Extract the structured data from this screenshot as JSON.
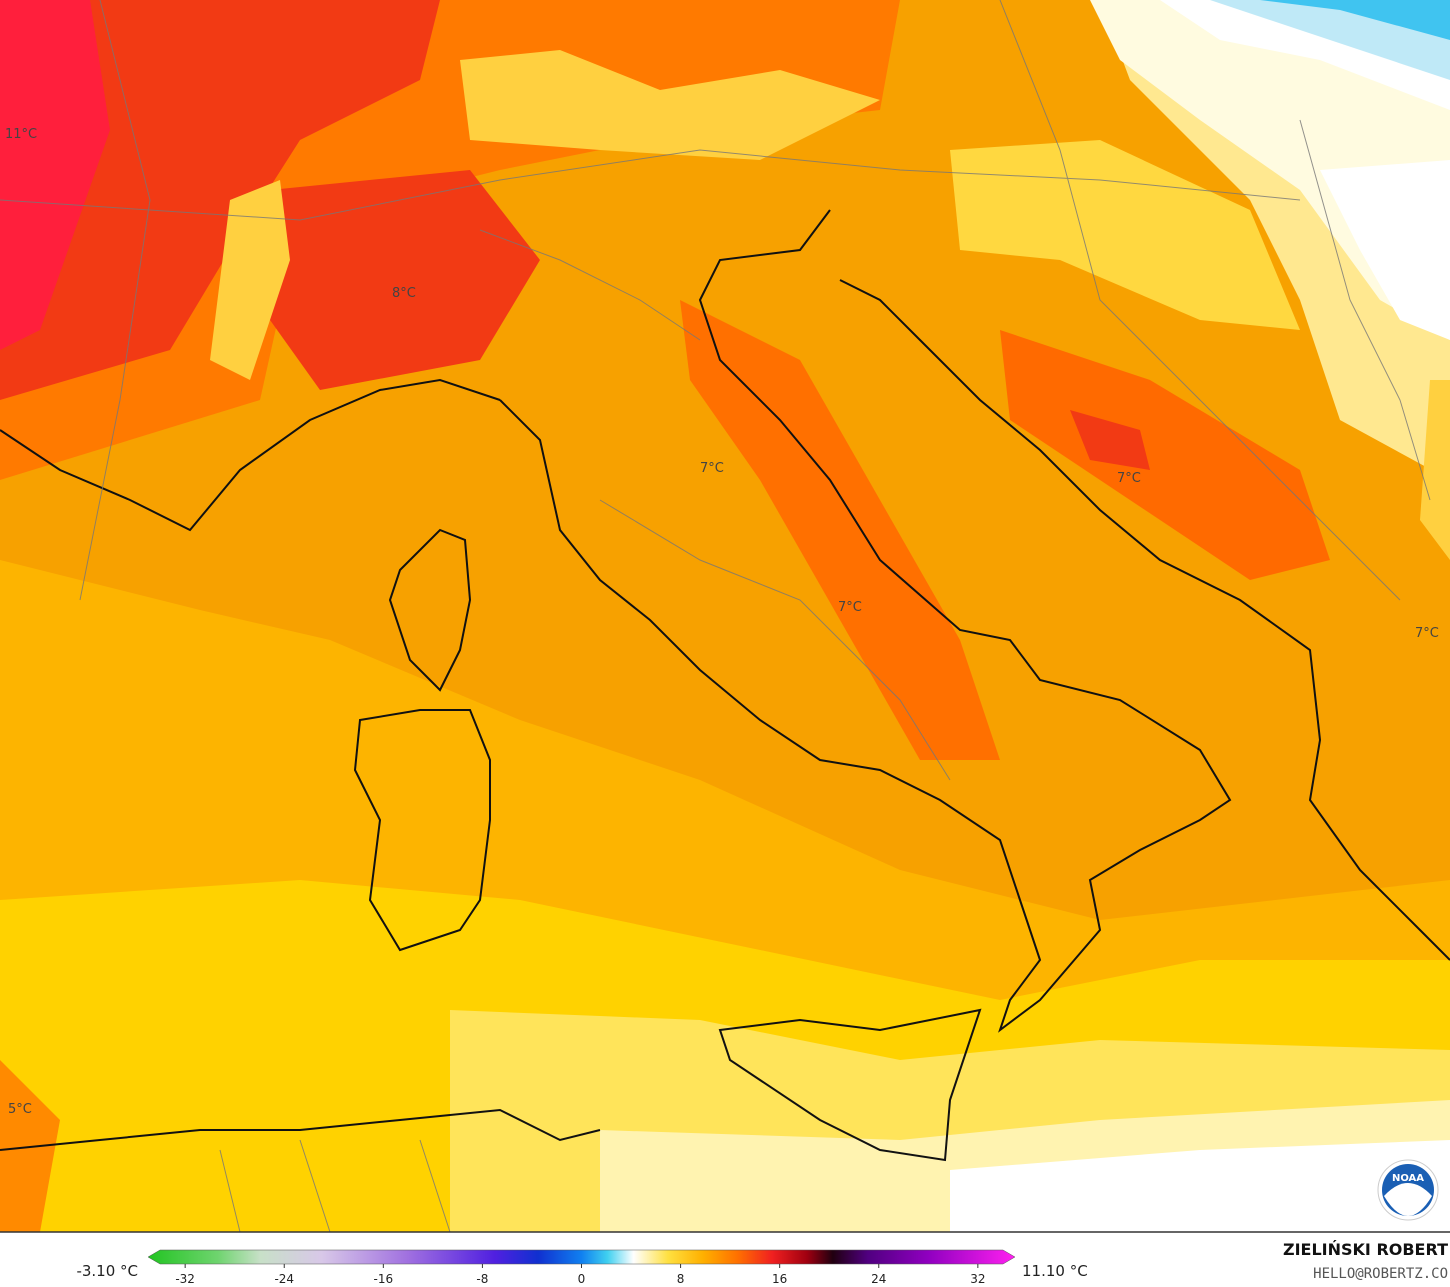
{
  "map": {
    "labels": [
      "11°C",
      "8°C",
      "7°C",
      "7°C",
      "7°C",
      "7°C",
      "5°C"
    ],
    "logo": "NOAA"
  },
  "legend": {
    "min_label": "-3.10 °C",
    "max_label": "11.10 °C",
    "range": [
      -35,
      35
    ],
    "ticks": [
      -32,
      -24,
      -16,
      -8,
      0,
      8,
      16,
      24,
      32
    ]
  },
  "credit": {
    "author": "ZIELIŃSKI ROBERT",
    "contact": "HELLO@ROBERTZ.CO"
  }
}
